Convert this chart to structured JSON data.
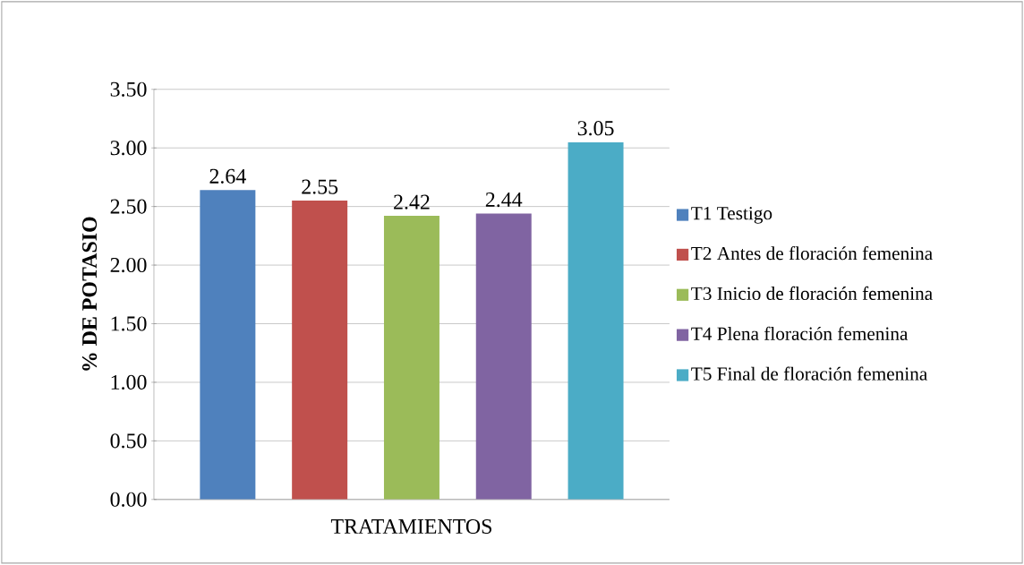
{
  "chart_data": {
    "type": "bar",
    "xlabel": "TRATAMIENTOS",
    "ylabel": "**% DE POTASIO**",
    "categories": [
      null
    ],
    "series": [
      {
        "name": "T1 Testigo",
        "color": "#4f81bd",
        "values": [
          2.64
        ]
      },
      {
        "name": "T2 Antes de floración femenina",
        "color": "#c0504d",
        "values": [
          2.55
        ]
      },
      {
        "name": "T3 Inicio de floración femenina",
        "color": "#9bbb59",
        "values": [
          2.42
        ]
      },
      {
        "name": "T4 Plena floración femenina",
        "color": "#8064a2",
        "values": [
          2.44
        ]
      },
      {
        "name": "T5 Final de floración femenina",
        "color": "#4bacc6",
        "values": [
          3.05
        ]
      }
    ],
    "ylim": [
      0,
      3.5
    ],
    "yticks": [
      {
        "value": 0,
        "label": "0.00"
      },
      {
        "value": 0.5,
        "label": "0.50"
      },
      {
        "value": 1,
        "label": "1.00"
      },
      {
        "value": 1.5,
        "label": "1.50"
      },
      {
        "value": 2,
        "label": "2.00"
      },
      {
        "value": 2.5,
        "label": "2.50"
      },
      {
        "value": 3,
        "label": "3.00"
      },
      {
        "value": 3.5,
        "label": "3.50"
      }
    ],
    "grid": "y",
    "legend": "right",
    "data_labels": true
  }
}
